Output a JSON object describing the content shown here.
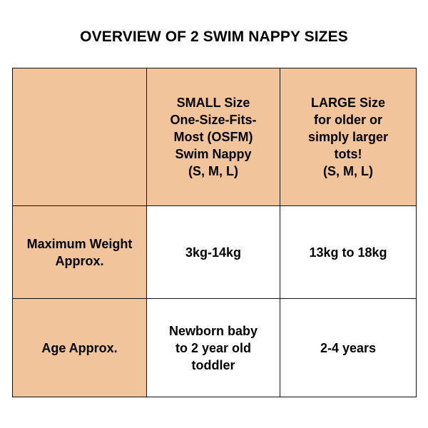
{
  "title": "OVERVIEW OF 2 SWIM NAPPY SIZES",
  "colors": {
    "header_fill": "#f2c49b",
    "body_fill": "#ffffff",
    "border": "#111111"
  },
  "table": {
    "corner": "",
    "columns": [
      "SMALL Size\nOne-Size-Fits-\nMost (OSFM)\nSwim Nappy\n(S, M, L)",
      "LARGE Size\nfor older or\nsimply larger\ntots!\n(S, M, L)"
    ],
    "rows": [
      {
        "label": "Maximum Weight\nApprox.",
        "cells": [
          "3kg-14kg",
          "13kg to 18kg"
        ]
      },
      {
        "label": "Age Approx.",
        "cells": [
          "Newborn baby\nto 2 year old\ntoddler",
          "2-4 years"
        ]
      }
    ]
  }
}
